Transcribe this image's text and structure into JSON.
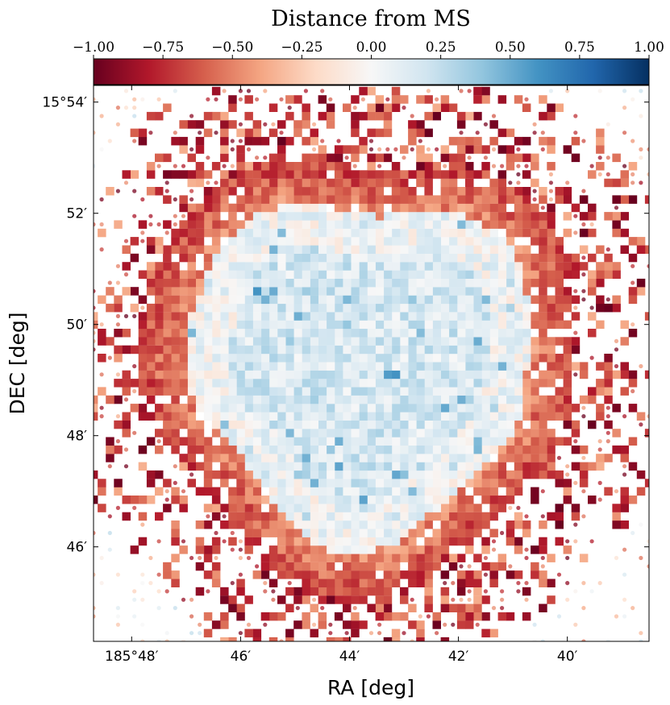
{
  "chart_data": {
    "type": "heatmap",
    "title": "Distance from MS",
    "xlabel": "RA [deg]",
    "ylabel": "DEC [deg]",
    "colorbar": {
      "cmap": "RdBu",
      "vmin": -1.0,
      "vmax": 1.0,
      "ticks": [
        -1.0,
        -0.75,
        -0.5,
        -0.25,
        0.0,
        0.25,
        0.5,
        0.75,
        1.0
      ],
      "tick_labels": [
        "−1.00",
        "−0.75",
        "−0.50",
        "−0.25",
        "0.00",
        "0.25",
        "0.50",
        "0.75",
        "1.00"
      ],
      "placement": "top"
    },
    "x_axis": {
      "unit": "arcmin of RA past 185°",
      "lim": [
        48.7,
        38.5
      ],
      "ticks": [
        48,
        46,
        44,
        42,
        40
      ],
      "tick_labels": [
        "185°48′",
        "46′",
        "44′",
        "42′",
        "40′"
      ],
      "inverted": true
    },
    "y_axis": {
      "unit": "arcmin of DEC past 15°",
      "lim": [
        44.3,
        54.3
      ],
      "ticks": [
        54,
        52,
        50,
        48,
        46
      ],
      "tick_labels": [
        "15°54′",
        "52′",
        "50′",
        "48′",
        "46′"
      ]
    },
    "bin_size_arcmin": 0.15,
    "regions": [
      {
        "name": "central disk",
        "center": [
          43.8,
          49.3
        ],
        "radius": 3.3,
        "value_range": [
          -0.05,
          0.45
        ],
        "description": "mostly pale blue, near-MS values"
      },
      {
        "name": "disk edge ring",
        "center": [
          43.8,
          49.3
        ],
        "radius_range": [
          3.3,
          4.2
        ],
        "value_range": [
          -0.5,
          -0.15
        ],
        "description": "salmon / light red ring"
      },
      {
        "name": "outer halo",
        "radius_range": [
          4.2,
          6.5
        ],
        "value_range": [
          -1.0,
          -0.3
        ],
        "description": "sparse, strongly red bins concentrated north and south"
      },
      {
        "name": "background field",
        "value_range": [
          -0.3,
          0.3
        ],
        "description": "very sparse faint dots"
      }
    ]
  }
}
